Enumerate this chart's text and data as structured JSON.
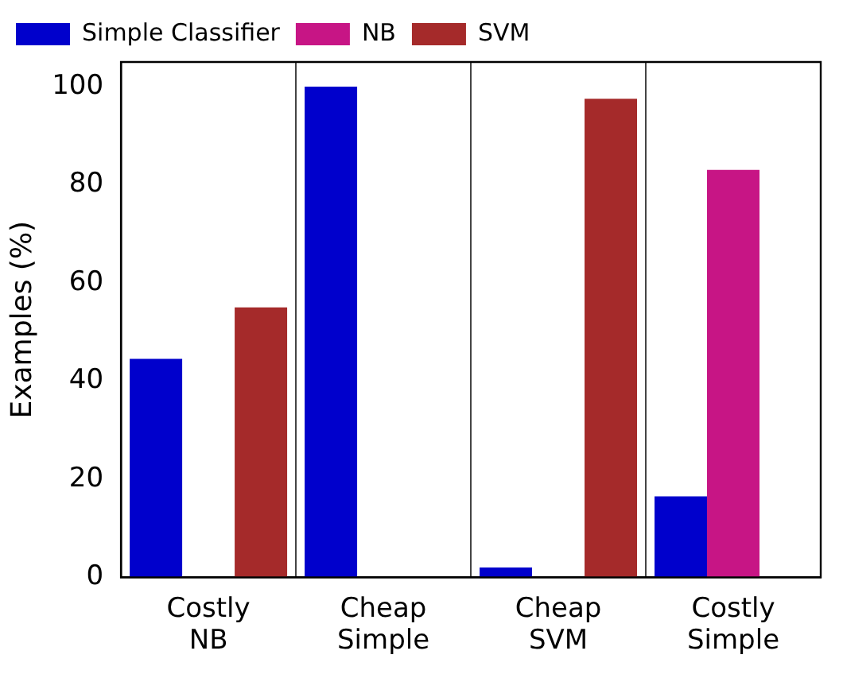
{
  "chart_data": {
    "type": "bar",
    "ylabel": "Examples (%)",
    "categories": [
      "Costly NB",
      "Cheap Simple",
      "Cheap SVM",
      "Costly Simple"
    ],
    "series": [
      {
        "name": "Simple Classifier",
        "color": "#0000cc",
        "values": [
          44.5,
          100,
          2,
          16.5
        ]
      },
      {
        "name": "NB",
        "color": "#c71585",
        "values": [
          0,
          0,
          0,
          83
        ]
      },
      {
        "name": "SVM",
        "color": "#a52a2a",
        "values": [
          55,
          0,
          97.5,
          0
        ]
      }
    ],
    "ylim": [
      0,
      105
    ],
    "yticks": [
      0,
      20,
      40,
      60,
      80,
      100
    ],
    "grid": "x",
    "legend": "top left"
  }
}
